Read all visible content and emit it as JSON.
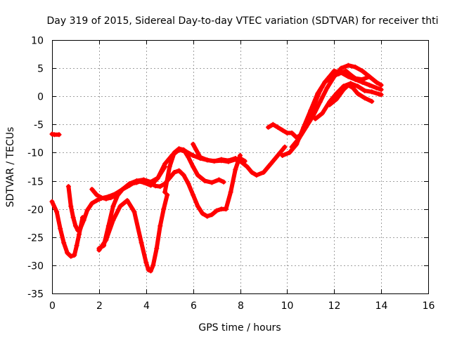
{
  "chart_data": {
    "type": "scatter",
    "title": "Day 319 of 2015, Sidereal Day-to-day VTEC variation (SDTVAR) for receiver thti",
    "xlabel": "GPS time / hours",
    "ylabel": "SDTVAR / TECUs",
    "xlim": [
      0,
      16
    ],
    "ylim": [
      -35,
      10
    ],
    "xticks": [
      0,
      2,
      4,
      6,
      8,
      10,
      12,
      14,
      16
    ],
    "yticks": [
      -35,
      -30,
      -25,
      -20,
      -15,
      -10,
      -5,
      0,
      5,
      10
    ],
    "grid": true,
    "marker": "+",
    "color": "#ff0000",
    "series": [
      {
        "x": [
          0.0,
          0.1,
          0.3
        ],
        "y": [
          -6.7,
          -6.8,
          -6.8
        ]
      },
      {
        "x": [
          0.0,
          0.2,
          0.35,
          0.5,
          0.65,
          0.8,
          0.95,
          1.05,
          1.15,
          1.3
        ],
        "y": [
          -18.7,
          -20.5,
          -23.5,
          -26.0,
          -27.8,
          -28.4,
          -28.2,
          -26.5,
          -24.5,
          -21.5
        ]
      },
      {
        "x": [
          0.7,
          0.8,
          0.9,
          1.0,
          1.1,
          1.2,
          1.35,
          1.5,
          1.7,
          1.9,
          2.1,
          2.4,
          2.7,
          3.0,
          3.3,
          3.6,
          3.9,
          4.2,
          4.5,
          4.8
        ],
        "y": [
          -16.0,
          -19.5,
          -21.5,
          -23.0,
          -23.8,
          -23.5,
          -22.0,
          -20.2,
          -19.0,
          -18.5,
          -18.1,
          -17.8,
          -17.3,
          -16.5,
          -15.5,
          -15.0,
          -15.3,
          -15.8,
          -14.5,
          -12.5
        ]
      },
      {
        "x": [
          1.7,
          1.9,
          2.1,
          2.3,
          2.5,
          2.8,
          3.0,
          3.2,
          3.4,
          3.6,
          3.8,
          4.0,
          4.2,
          4.4,
          4.6,
          4.8
        ],
        "y": [
          -16.5,
          -17.5,
          -18.0,
          -18.2,
          -18.0,
          -17.5,
          -16.5,
          -16.0,
          -15.5,
          -15.3,
          -15.0,
          -15.2,
          -15.5,
          -15.9,
          -16.0,
          -15.5
        ]
      },
      {
        "x": [
          2.0,
          2.3,
          2.6,
          2.9,
          3.2,
          3.5,
          3.8,
          4.0,
          4.1,
          4.2,
          4.3,
          4.45,
          4.6,
          4.75,
          4.9
        ],
        "y": [
          -27.3,
          -25.5,
          -22.0,
          -19.5,
          -18.5,
          -20.5,
          -26.0,
          -29.5,
          -30.8,
          -31.0,
          -30.0,
          -27.0,
          -23.0,
          -20.0,
          -17.5
        ]
      },
      {
        "x": [
          2.0,
          2.2,
          2.4,
          2.6,
          2.8,
          3.0,
          3.3,
          3.6,
          3.9,
          4.2,
          4.5,
          4.8,
          5.1,
          5.4,
          5.7,
          6.0,
          6.3,
          6.6,
          6.9,
          7.2,
          7.5,
          7.8,
          8.1,
          8.3,
          8.5,
          8.7,
          9.0,
          9.3,
          9.6,
          9.9
        ],
        "y": [
          -27.0,
          -26.5,
          -23.0,
          -19.5,
          -17.5,
          -16.5,
          -15.8,
          -15.0,
          -14.8,
          -15.2,
          -14.5,
          -12.0,
          -10.5,
          -9.5,
          -9.8,
          -10.5,
          -11.0,
          -11.3,
          -11.5,
          -11.2,
          -11.4,
          -11.0,
          -11.8,
          -12.5,
          -13.5,
          -14.0,
          -13.5,
          -12.0,
          -10.5,
          -9.0
        ]
      },
      {
        "x": [
          4.8,
          5.0,
          5.2,
          5.4,
          5.6,
          5.8,
          6.0,
          6.2,
          6.5,
          6.8,
          7.1,
          7.3
        ],
        "y": [
          -17.0,
          -12.5,
          -10.0,
          -9.3,
          -9.5,
          -10.8,
          -12.5,
          -14.0,
          -15.0,
          -15.3,
          -14.8,
          -15.2
        ]
      },
      {
        "x": [
          4.8,
          5.0,
          5.2,
          5.4,
          5.6,
          5.8,
          6.0,
          6.2,
          6.4,
          6.6,
          6.8,
          7.0,
          7.2,
          7.4,
          7.6,
          7.8,
          8.0
        ],
        "y": [
          -15.5,
          -14.5,
          -13.5,
          -13.2,
          -14.0,
          -15.5,
          -17.5,
          -19.5,
          -20.8,
          -21.3,
          -21.0,
          -20.3,
          -20.0,
          -20.0,
          -17.0,
          -13.0,
          -10.5
        ]
      },
      {
        "x": [
          6.0,
          6.3,
          6.6,
          6.9,
          7.2,
          7.5,
          7.8,
          8.0,
          8.2
        ],
        "y": [
          -8.5,
          -10.8,
          -11.3,
          -11.5,
          -11.4,
          -11.6,
          -11.2,
          -11.0,
          -11.5
        ]
      },
      {
        "x": [
          9.2,
          9.4,
          9.6,
          9.8,
          10.0,
          10.2,
          10.4,
          10.6,
          10.8,
          11.0,
          11.2,
          11.4,
          11.6,
          11.8,
          12.0,
          12.3,
          12.6,
          12.9,
          13.2,
          13.5,
          13.8,
          14.0
        ],
        "y": [
          -5.5,
          -5.0,
          -5.5,
          -6.0,
          -6.5,
          -6.5,
          -7.3,
          -6.8,
          -5.5,
          -3.5,
          -1.0,
          1.0,
          2.5,
          3.5,
          4.5,
          4.2,
          3.5,
          3.0,
          2.5,
          2.0,
          1.5,
          1.2
        ]
      },
      {
        "x": [
          9.8,
          10.1,
          10.4,
          10.7,
          11.0,
          11.3,
          11.6,
          11.9,
          12.2,
          12.5,
          12.7,
          12.9,
          13.2,
          13.5
        ],
        "y": [
          -10.5,
          -10.0,
          -8.5,
          -5.5,
          -2.5,
          0.5,
          2.5,
          3.5,
          4.0,
          4.5,
          3.8,
          3.2,
          3.0,
          3.5
        ]
      },
      {
        "x": [
          10.2,
          10.5,
          10.8,
          11.1,
          11.4,
          11.7,
          12.0,
          12.3,
          12.6,
          12.9,
          13.2,
          13.5,
          13.8,
          14.0
        ],
        "y": [
          -9.0,
          -7.5,
          -5.5,
          -3.5,
          -1.0,
          1.5,
          3.5,
          5.0,
          5.5,
          5.2,
          4.5,
          3.5,
          2.5,
          2.0
        ]
      },
      {
        "x": [
          11.2,
          11.5,
          11.8,
          12.1,
          12.4,
          12.7,
          13.0,
          13.3,
          13.6,
          13.9,
          14.0
        ],
        "y": [
          -4.0,
          -3.0,
          -1.0,
          0.5,
          1.8,
          2.3,
          1.8,
          1.0,
          0.8,
          0.4,
          0.3
        ]
      },
      {
        "x": [
          11.8,
          12.1,
          12.4,
          12.6,
          12.8,
          13.0,
          13.3,
          13.6
        ],
        "y": [
          -1.5,
          -0.5,
          1.2,
          2.0,
          1.5,
          0.5,
          -0.3,
          -0.9
        ]
      }
    ]
  }
}
